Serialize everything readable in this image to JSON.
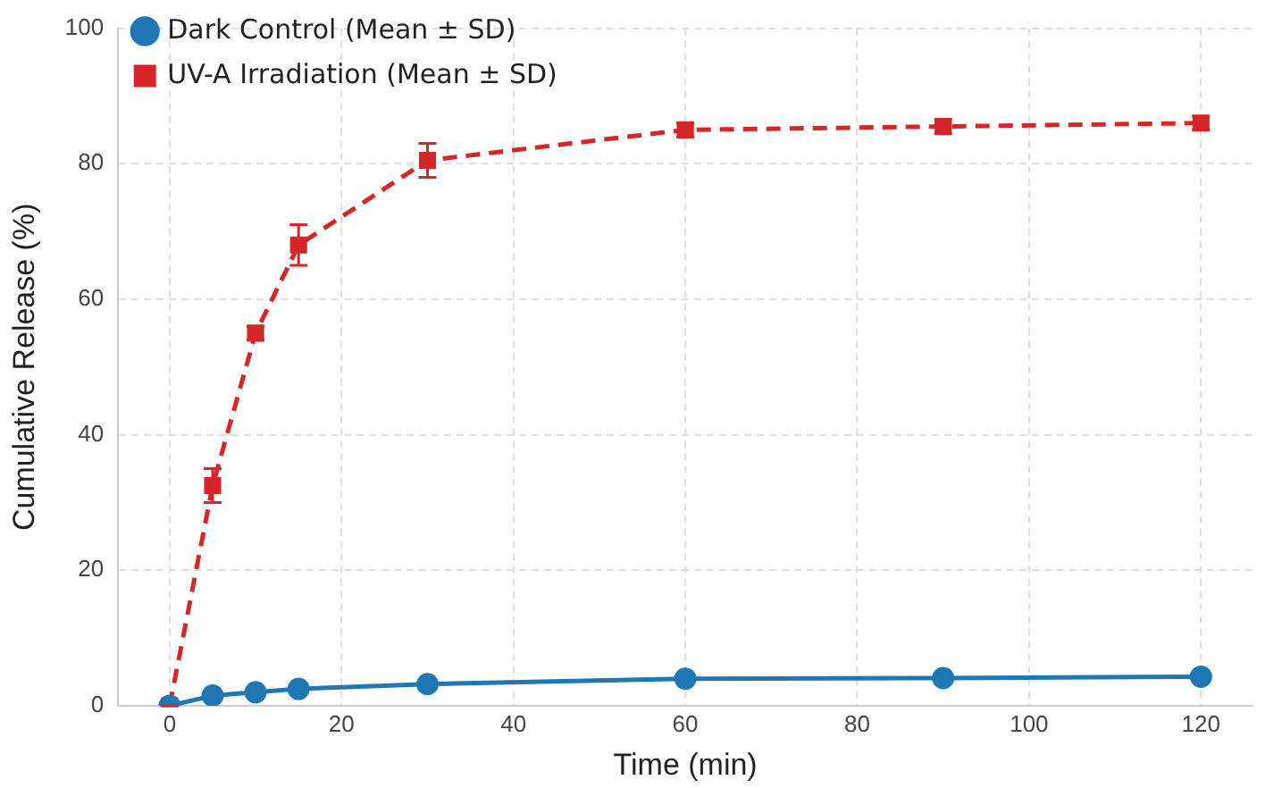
{
  "chart_data": {
    "type": "line",
    "xlabel": "Time (min)",
    "ylabel": "Cumulative Release (%)",
    "x": [
      0,
      5,
      10,
      15,
      30,
      60,
      90,
      120
    ],
    "series": [
      {
        "name": "Dark Control (Mean ± SD)",
        "color": "#1f77b4",
        "marker": "circle",
        "line_style": "solid",
        "values": [
          0,
          1.5,
          2,
          2.5,
          3.2,
          4,
          4.1,
          4.3
        ],
        "errors": [
          0,
          0.3,
          0.3,
          0.3,
          0.3,
          0.3,
          0.3,
          0.3
        ]
      },
      {
        "name": "UV-A Irradiation (Mean ± SD)",
        "color": "#d62728",
        "marker": "square",
        "line_style": "dashed",
        "values": [
          0,
          32.5,
          55,
          68,
          80.5,
          85,
          85.5,
          86
        ],
        "errors": [
          0,
          2.5,
          1,
          3,
          2.5,
          1,
          1,
          1
        ]
      }
    ],
    "xlim": [
      -6,
      126
    ],
    "xticks": [
      0,
      20,
      40,
      60,
      80,
      100,
      120
    ],
    "ylim": [
      0,
      100
    ],
    "yticks": [
      0,
      20,
      40,
      60,
      80,
      100
    ],
    "grid": true,
    "legend": "top left"
  }
}
